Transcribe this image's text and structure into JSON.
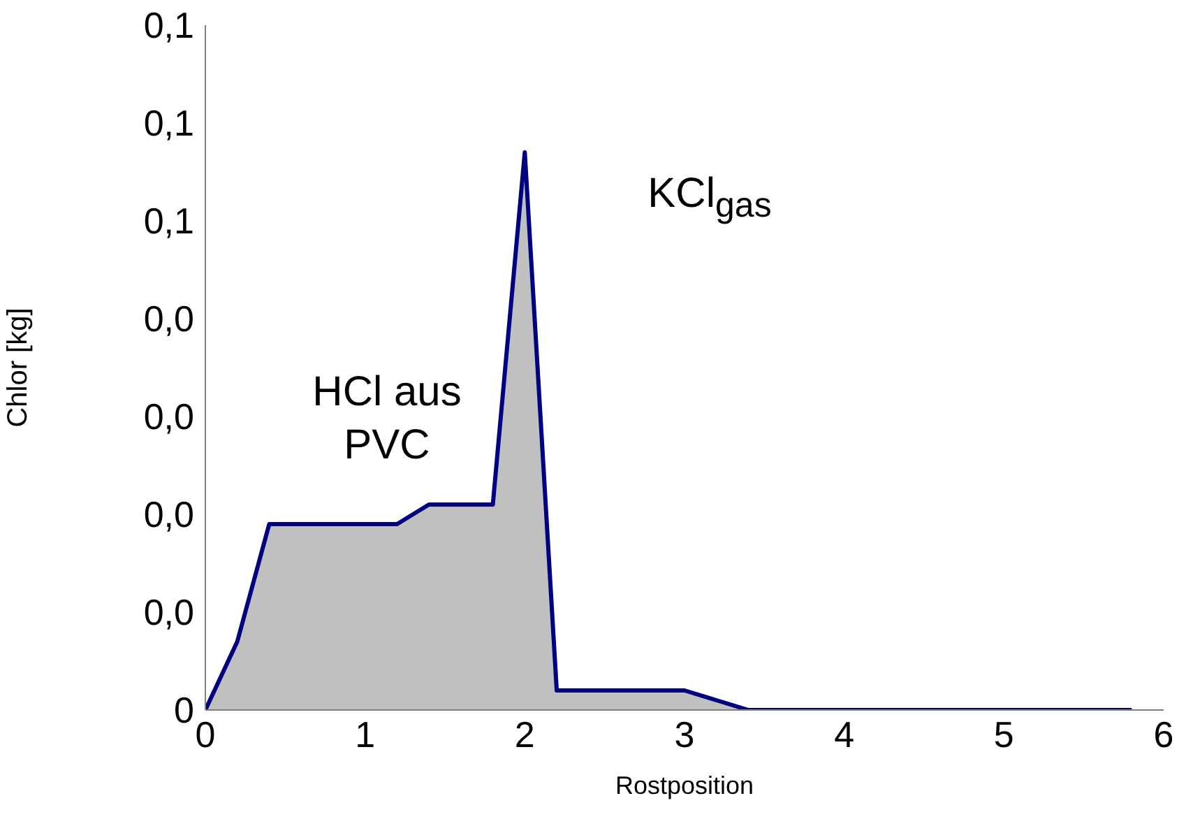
{
  "chart_data": {
    "type": "area",
    "xlabel": "Rostposition",
    "ylabel": "Chlor [kg]",
    "x": [
      0,
      0.2,
      0.4,
      1.0,
      1.2,
      1.4,
      1.8,
      2.0,
      2.2,
      2.8,
      3.0,
      3.2,
      3.4,
      5.8
    ],
    "series": [
      {
        "color": "#000080",
        "values": [
          0,
          0.007,
          0.019,
          0.019,
          0.019,
          0.021,
          0.021,
          0.057,
          0.002,
          0.002,
          0.002,
          0.001,
          0,
          0
        ]
      }
    ],
    "xlim": [
      0,
      6
    ],
    "xticks": [
      0,
      1,
      2,
      3,
      4,
      5,
      6
    ],
    "ylim": [
      0,
      0.07
    ],
    "yticks": [
      0,
      {
        "value": 0.01,
        "label": "0,0"
      },
      {
        "value": 0.02,
        "label": "0,0"
      },
      {
        "value": 0.03,
        "label": "0,0"
      },
      {
        "value": 0.04,
        "label": "0,0"
      },
      {
        "value": 0.05,
        "label": "0,1"
      },
      {
        "value": 0.06,
        "label": "0,1"
      },
      {
        "value": 0.07,
        "label": "0,1"
      }
    ],
    "annotations": [
      "HCl aus\nPVC",
      "KCl$_{gas}$"
    ]
  }
}
